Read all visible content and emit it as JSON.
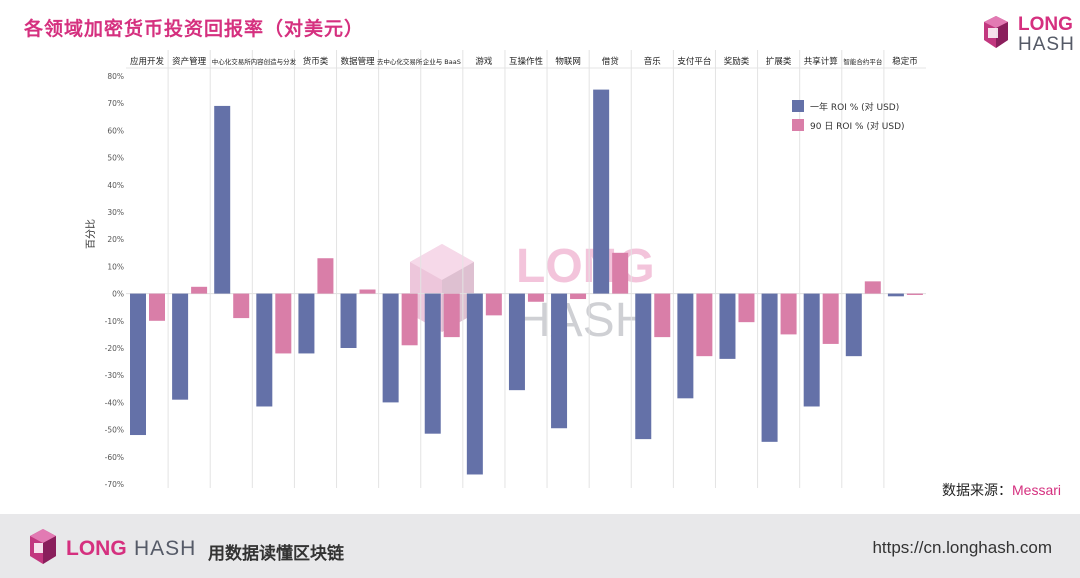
{
  "title": "各领域加密货币投资回报率（对美元）",
  "brand": {
    "name_part1": "LONG",
    "name_part2": "HASH"
  },
  "source": {
    "label": "数据来源：",
    "value": "Messari"
  },
  "footer": {
    "slogan": "用数据读懂区块链",
    "url": "https://cn.longhash.com"
  },
  "colors": {
    "title": "#d5307f",
    "one_year": "#6471a8",
    "ninety_day": "#d97ea8"
  },
  "chart_data": {
    "type": "bar",
    "ylabel": "百分比",
    "ylim": [
      -70,
      80
    ],
    "yticks": [
      80,
      70,
      60,
      50,
      40,
      30,
      20,
      10,
      0,
      -10,
      -20,
      -30,
      -40,
      -50,
      -60,
      -70
    ],
    "ytick_labels": [
      "80%",
      "70%",
      "60%",
      "50%",
      "40%",
      "30%",
      "20%",
      "10%",
      "0%",
      "-10%",
      "-20%",
      "-30%",
      "-40%",
      "-50%",
      "-60%",
      "-70%"
    ],
    "grid": "vertical separators",
    "legend_position": "top-right",
    "categories": [
      "应用开发",
      "资产管理",
      "中心化交易所",
      "内容创造与分发",
      "货币类",
      "数据管理",
      "去中心化交易所",
      "企业与 BaaS",
      "游戏",
      "互操作性",
      "物联网",
      "借贷",
      "音乐",
      "支付平台",
      "奖励类",
      "扩展类",
      "共享计算",
      "智能合约平台",
      "稳定币"
    ],
    "series": [
      {
        "name": "一年 ROI % (对 USD)",
        "values": [
          -52,
          -39,
          69,
          -41.5,
          -22,
          -20,
          -40,
          -51.5,
          -66.5,
          -35.5,
          -49.5,
          75,
          -53.5,
          -38.5,
          -24,
          -54.5,
          -41.5,
          -23,
          -1
        ]
      },
      {
        "name": "90 日 ROI % (对 USD)",
        "values": [
          -10,
          2.5,
          -9,
          -22,
          13,
          1.5,
          -19,
          -16,
          -8,
          -3,
          -2,
          15,
          -16,
          -23,
          -10.5,
          -15,
          -18.5,
          4.5,
          -0.5
        ]
      }
    ]
  }
}
